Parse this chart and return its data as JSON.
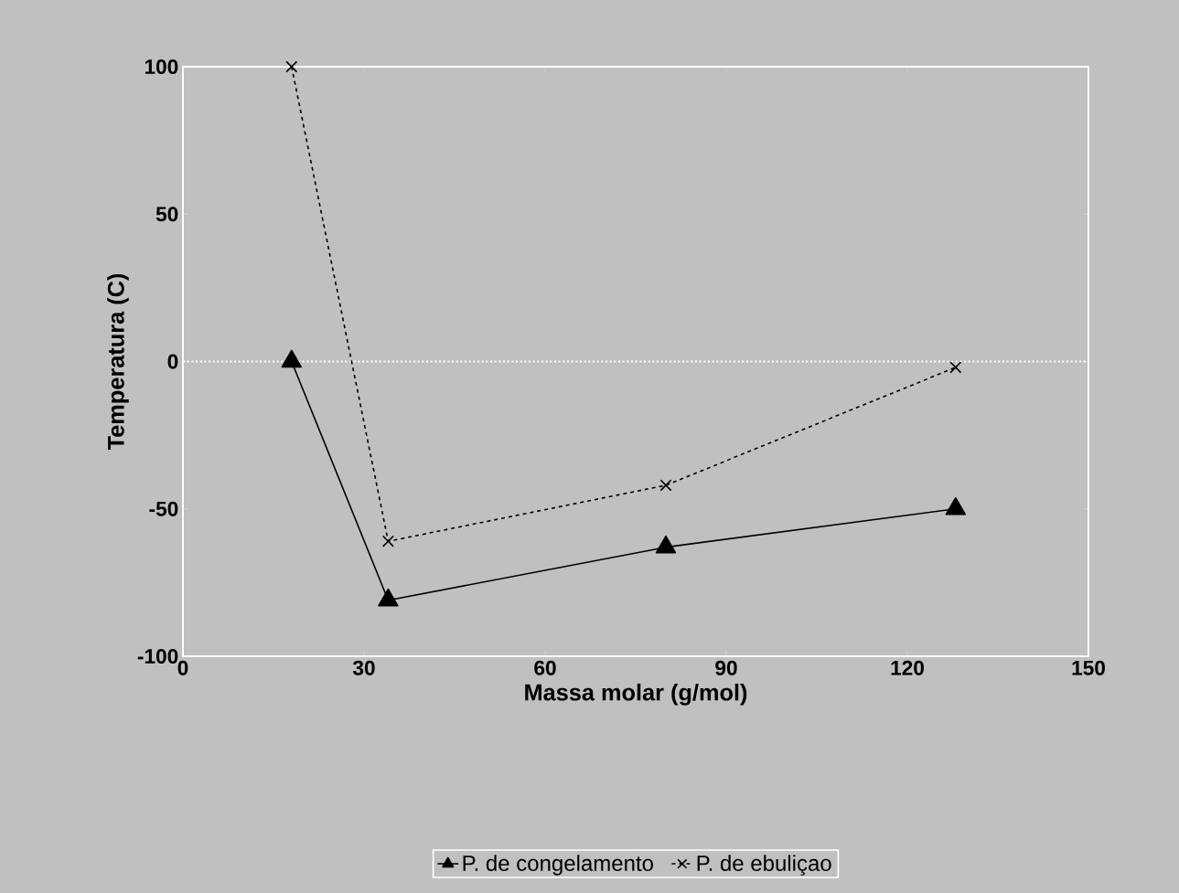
{
  "chart_data": {
    "type": "line",
    "xlabel": "Massa molar (g/mol)",
    "ylabel": "Temperatura (C)",
    "xlim": [
      0,
      150
    ],
    "ylim": [
      -100,
      100
    ],
    "xticks": [
      0,
      30,
      60,
      90,
      120,
      150
    ],
    "yticks": [
      -100,
      -50,
      0,
      50,
      100
    ],
    "legend": "bottom",
    "ref_lines": [
      {
        "axis": "y",
        "value": 0,
        "color": "#ffffff",
        "line_style": "dotted"
      }
    ],
    "series": [
      {
        "name": "P. de congelamento",
        "color": "#000000",
        "x": [
          18,
          34,
          80,
          128
        ],
        "values": [
          0,
          -81,
          -63,
          -50
        ],
        "marker": "triangle",
        "line_style": "solid"
      },
      {
        "name": "P. de ebuliçao",
        "color": "#000000",
        "x": [
          18,
          34,
          80,
          128
        ],
        "values": [
          100,
          -61,
          -42,
          -2
        ],
        "marker": "cross",
        "line_style": "dashed"
      }
    ]
  }
}
